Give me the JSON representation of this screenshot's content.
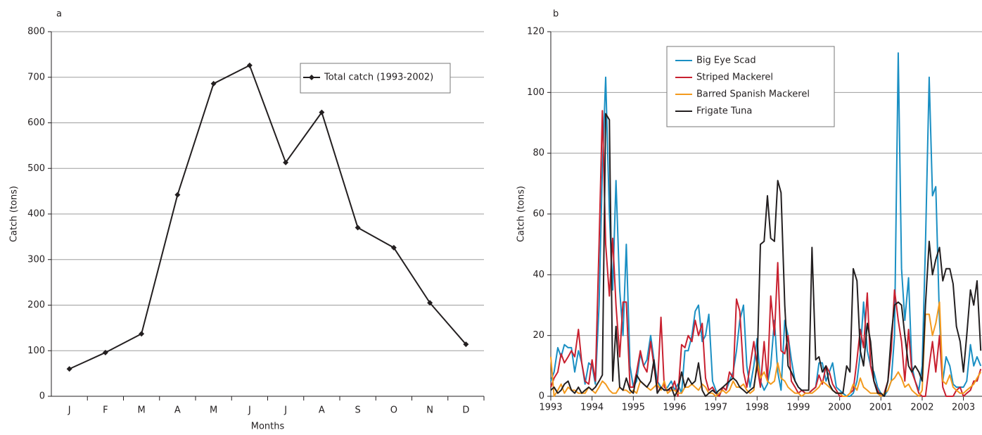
{
  "chart_data": [
    {
      "type": "line",
      "title": "a",
      "y_label": "Catch (tons)",
      "x_label": "Months",
      "categories": [
        "J",
        "F",
        "M",
        "A",
        "M",
        "J",
        "J",
        "A",
        "S",
        "O",
        "N",
        "D"
      ],
      "series": [
        {
          "name": "Total catch (1993-2002)",
          "color": "#231f20",
          "marker": "diamond",
          "values": [
            60,
            96,
            137,
            442,
            686,
            726,
            513,
            623,
            370,
            326,
            205,
            114
          ]
        }
      ],
      "ylim": [
        0,
        800
      ],
      "yticks": [
        0,
        100,
        200,
        300,
        400,
        500,
        600,
        700,
        800
      ],
      "grid": true,
      "legend": "top-right"
    },
    {
      "type": "line",
      "title": "b",
      "y_label": "Catch (tons)",
      "x": [
        1993,
        1993.08,
        1993.17,
        1993.25,
        1993.33,
        1993.42,
        1993.5,
        1993.58,
        1993.67,
        1993.75,
        1993.83,
        1993.92,
        1994,
        1994.08,
        1994.17,
        1994.25,
        1994.33,
        1994.42,
        1994.5,
        1994.58,
        1994.67,
        1994.75,
        1994.83,
        1994.92,
        1995,
        1995.08,
        1995.17,
        1995.25,
        1995.33,
        1995.42,
        1995.5,
        1995.58,
        1995.67,
        1995.75,
        1995.83,
        1995.92,
        1996,
        1996.08,
        1996.17,
        1996.25,
        1996.33,
        1996.42,
        1996.5,
        1996.58,
        1996.67,
        1996.75,
        1996.83,
        1996.92,
        1997,
        1997.08,
        1997.17,
        1997.25,
        1997.33,
        1997.42,
        1997.5,
        1997.58,
        1997.67,
        1997.75,
        1997.83,
        1997.92,
        1998,
        1998.08,
        1998.17,
        1998.25,
        1998.33,
        1998.42,
        1998.5,
        1998.58,
        1998.67,
        1998.75,
        1998.83,
        1998.92,
        1999,
        1999.08,
        1999.17,
        1999.25,
        1999.33,
        1999.42,
        1999.5,
        1999.58,
        1999.67,
        1999.75,
        1999.83,
        1999.92,
        2000,
        2000.08,
        2000.17,
        2000.25,
        2000.33,
        2000.42,
        2000.5,
        2000.58,
        2000.67,
        2000.75,
        2000.83,
        2000.92,
        2001,
        2001.08,
        2001.17,
        2001.25,
        2001.33,
        2001.42,
        2001.5,
        2001.58,
        2001.67,
        2001.75,
        2001.83,
        2001.92,
        2002,
        2002.08,
        2002.17,
        2002.25,
        2002.33,
        2002.42,
        2002.5,
        2002.58,
        2002.67,
        2002.75,
        2002.83,
        2002.92,
        2003,
        2003.08,
        2003.17,
        2003.25,
        2003.33,
        2003.42
      ],
      "series": [
        {
          "name": "Big Eye Scad",
          "color": "#1a8fc3",
          "values": [
            5,
            8,
            16,
            13,
            17,
            16,
            16,
            8,
            15,
            11,
            4,
            11,
            10,
            4,
            30,
            75,
            105,
            60,
            35,
            71,
            35,
            20,
            50,
            10,
            3,
            5,
            14,
            10,
            12,
            20,
            12,
            5,
            3,
            2,
            3,
            5,
            2,
            4,
            1,
            15,
            15,
            20,
            28,
            30,
            18,
            20,
            27,
            5,
            2,
            0,
            3,
            2,
            5,
            8,
            15,
            25,
            30,
            10,
            3,
            10,
            19,
            5,
            2,
            4,
            10,
            25,
            8,
            2,
            25,
            20,
            12,
            5,
            3,
            2,
            1,
            1,
            2,
            3,
            11,
            11,
            5,
            8,
            11,
            3,
            2,
            1,
            0,
            0,
            1,
            5,
            14,
            31,
            15,
            10,
            8,
            3,
            1,
            0,
            2,
            5,
            20,
            113,
            42,
            25,
            39,
            10,
            5,
            2,
            10,
            50,
            105,
            66,
            69,
            25,
            5,
            13,
            10,
            4,
            3,
            3,
            3,
            5,
            17,
            10,
            13,
            10
          ]
        },
        {
          "name": "Striped Mackerel",
          "color": "#c8202f",
          "values": [
            3,
            6,
            8,
            14,
            11,
            13,
            15,
            13,
            22,
            11,
            5,
            4,
            12,
            5,
            50,
            94,
            50,
            33,
            52,
            30,
            13,
            31,
            31,
            3,
            3,
            8,
            15,
            10,
            8,
            18,
            10,
            2,
            26,
            3,
            2,
            2,
            5,
            0,
            17,
            16,
            20,
            18,
            25,
            20,
            24,
            6,
            2,
            3,
            1,
            0,
            3,
            2,
            8,
            6,
            32,
            28,
            8,
            3,
            10,
            18,
            10,
            3,
            18,
            5,
            33,
            20,
            44,
            15,
            14,
            20,
            5,
            3,
            1,
            2,
            1,
            1,
            2,
            3,
            7,
            4,
            10,
            8,
            4,
            2,
            0,
            0,
            0,
            1,
            2,
            12,
            22,
            16,
            34,
            10,
            5,
            2,
            0,
            1,
            5,
            15,
            35,
            25,
            18,
            5,
            22,
            8,
            5,
            1,
            0,
            0,
            10,
            18,
            8,
            20,
            3,
            0,
            0,
            0,
            2,
            3,
            0,
            1,
            2,
            5,
            5,
            9
          ]
        },
        {
          "name": "Barred Spanish Mackerel",
          "color": "#f39a1e",
          "values": [
            13,
            0,
            2,
            4,
            1,
            3,
            2,
            2,
            1,
            1,
            1,
            3,
            2,
            1,
            3,
            5,
            4,
            2,
            1,
            1,
            3,
            2,
            2,
            1,
            2,
            1,
            5,
            4,
            3,
            2,
            3,
            4,
            2,
            5,
            1,
            2,
            2,
            1,
            1,
            3,
            3,
            4,
            3,
            2,
            4,
            3,
            1,
            1,
            0,
            1,
            2,
            1,
            2,
            5,
            3,
            3,
            4,
            2,
            1,
            2,
            12,
            6,
            8,
            5,
            4,
            5,
            11,
            6,
            5,
            3,
            2,
            1,
            1,
            0,
            1,
            1,
            1,
            2,
            3,
            5,
            4,
            3,
            2,
            1,
            1,
            0,
            0,
            1,
            4,
            2,
            6,
            3,
            2,
            1,
            1,
            1,
            0,
            1,
            2,
            5,
            6,
            8,
            6,
            3,
            4,
            2,
            1,
            0,
            2,
            27,
            27,
            20,
            24,
            31,
            5,
            4,
            7,
            3,
            2,
            1,
            1,
            2,
            3,
            4,
            6,
            8
          ]
        },
        {
          "name": "Frigate Tuna",
          "color": "#231f20",
          "values": [
            2,
            3,
            1,
            2,
            4,
            5,
            2,
            1,
            3,
            1,
            2,
            3,
            2,
            3,
            5,
            7,
            93,
            91,
            5,
            23,
            3,
            2,
            6,
            2,
            1,
            7,
            5,
            4,
            3,
            5,
            12,
            1,
            3,
            2,
            2,
            3,
            0,
            2,
            8,
            3,
            6,
            4,
            5,
            11,
            2,
            0,
            1,
            2,
            1,
            2,
            3,
            4,
            5,
            6,
            5,
            3,
            2,
            1,
            2,
            3,
            10,
            50,
            51,
            66,
            52,
            51,
            71,
            67,
            30,
            10,
            8,
            5,
            3,
            2,
            2,
            2,
            49,
            12,
            13,
            8,
            10,
            4,
            2,
            1,
            1,
            1,
            10,
            8,
            42,
            38,
            15,
            10,
            24,
            18,
            5,
            1,
            1,
            0,
            5,
            20,
            30,
            31,
            30,
            20,
            10,
            8,
            10,
            8,
            5,
            30,
            51,
            40,
            45,
            49,
            38,
            42,
            42,
            37,
            23,
            18,
            8,
            20,
            35,
            30,
            38,
            15
          ]
        }
      ],
      "xlim": [
        1993,
        2003.45
      ],
      "xticks": [
        1993,
        1994,
        1995,
        1996,
        1997,
        1998,
        1999,
        2000,
        2001,
        2002,
        2003
      ],
      "ylim": [
        0,
        120
      ],
      "yticks": [
        0,
        20,
        40,
        60,
        80,
        100,
        120
      ],
      "grid": true,
      "legend": "top-left"
    }
  ]
}
